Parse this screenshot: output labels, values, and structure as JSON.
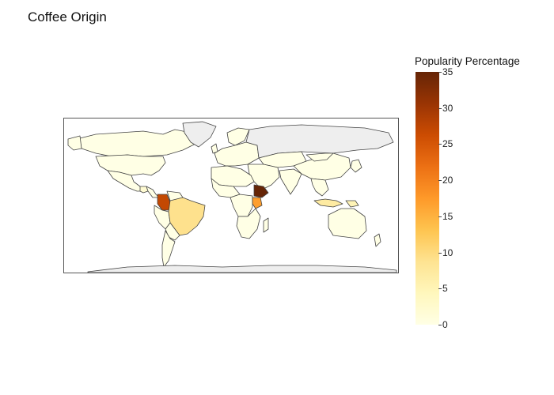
{
  "title": "Coffee Origin",
  "colorbar": {
    "title": "Popularity Percentage",
    "range": [
      0,
      35
    ],
    "ticks": [
      "0",
      "5",
      "10",
      "15",
      "20",
      "25",
      "30",
      "35"
    ],
    "colorscale": [
      "#ffffe5",
      "#fff7bc",
      "#fee391",
      "#fec44f",
      "#fe9929",
      "#ec7014",
      "#cc4c02",
      "#993404",
      "#662506"
    ]
  },
  "map": {
    "projection": "equirectangular",
    "missing_color": "#eeeeee",
    "zero_color": "#ffffe5",
    "border_color": "#444444",
    "countries": [
      {
        "name": "Ethiopia",
        "value": 35
      },
      {
        "name": "Colombia",
        "value": 27
      },
      {
        "name": "Kenya",
        "value": 17
      },
      {
        "name": "Brazil",
        "value": 9
      },
      {
        "name": "Indonesia",
        "value": 7
      },
      {
        "name": "Papua New Guinea",
        "value": 5
      },
      {
        "name": "Guatemala",
        "value": 2
      }
    ]
  }
}
